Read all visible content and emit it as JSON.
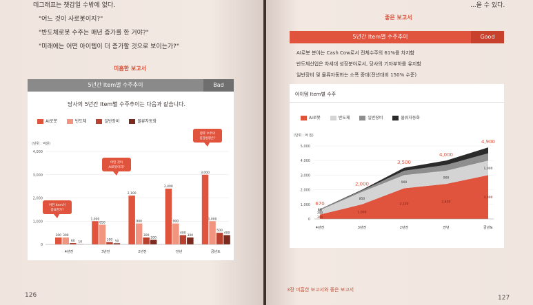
{
  "left_page": {
    "intro_lines": [
      "데그래프는 챗갑일 수밖에 없다.",
      "\"어느 것이 사로봇이지?\"",
      "\"반도체로봇 수주는 매년 증가를 한 거야?\"",
      "\"미래에는 어떤 아이템이 더 증가할 것으로 보이는가?\""
    ],
    "section_title": "미흡한 보고서",
    "header": "5년간 Item별 수주추이",
    "badge": "Bad",
    "chart_title": "당사의 5년간 Item별 수주추이는 다음과 같습니다.",
    "page_number": "126"
  },
  "right_page": {
    "top_text": "...을 수 있다.",
    "section_title": "좋은 보고서",
    "header": "5년간 Item별 수주추이",
    "badge": "Good",
    "bullets": [
      "AI로봇 분야는 Cash Cow로서 전체수주의 61%를 차지함",
      "반도체산업은 차세대 성장분야로서, 당사의 기자부하를 유지함",
      "일반장비 및 물류자동화는 소폭 증대(전년대비 150% 수준)"
    ],
    "chart_title": "아이템 Item별 수주",
    "footer": "3장 미흡한 보고서와 좋은 보고서",
    "page_number": "127"
  },
  "colors": {
    "ai_robot": "#e0533d",
    "semiconductor": "#f19480",
    "general_equipment": "#b8412f",
    "logistics": "#7a2a1f",
    "good_ai": "#e0533d",
    "good_semi": "#d4d4d4",
    "good_gen": "#8e8e8e",
    "good_log": "#2a2a2a",
    "accent": "#e0533d",
    "header_gray": "#8a8a8a",
    "bad_badge": "#6f6f6f",
    "good_badge": "#e0533d"
  },
  "chart_data": [
    {
      "type": "bar",
      "unit_label": "(단위 : 억원)",
      "categories": [
        "4년전",
        "3년전",
        "2년전",
        "전년",
        "금년도"
      ],
      "yticks": [
        "0",
        "1,000",
        "2,000",
        "3,000",
        "4,000"
      ],
      "ylim": [
        0,
        4000
      ],
      "series": [
        {
          "name": "AI로봇",
          "values": [
            300,
            1000,
            2100,
            2400,
            3000
          ]
        },
        {
          "name": "반도체",
          "values": [
            300,
            850,
            900,
            900,
            1000
          ]
        },
        {
          "name": "일반장비",
          "values": [
            60,
            100,
            300,
            400,
            500
          ]
        },
        {
          "name": "물류자동화",
          "values": [
            10,
            50,
            200,
            300,
            400
          ]
        }
      ],
      "value_labels": [
        [
          "300",
          "300",
          "60",
          "10"
        ],
        [
          "1,000",
          "850",
          "100",
          "50"
        ],
        [
          "2,100",
          "900",
          "300",
          "200"
        ],
        [
          "2,400",
          "900",
          "400",
          "300"
        ],
        [
          "3,000",
          "1,000",
          "500",
          "400"
        ]
      ],
      "callouts": [
        "어떤 Item이\n중요한가?",
        "어떤 것이\nAI로봇이지?",
        "향후 수주의\n증감방향은?"
      ]
    },
    {
      "type": "area",
      "unit_label": "(단위 : 억 원)",
      "categories": [
        "4년전",
        "3년전",
        "2년전",
        "전년",
        "금년도"
      ],
      "yticks": [
        "0",
        "1,000",
        "2,000",
        "3,000",
        "4,000",
        "5,000"
      ],
      "ylim": [
        0,
        5000
      ],
      "totals": [
        "670",
        "2,000",
        "3,500",
        "4,000",
        "4,900"
      ],
      "series": [
        {
          "name": "AI로봇",
          "values": [
            300,
            1000,
            2100,
            2400,
            3000
          ]
        },
        {
          "name": "반도체",
          "values": [
            300,
            850,
            900,
            900,
            1000
          ]
        },
        {
          "name": "일반장비",
          "values": [
            60,
            100,
            300,
            400,
            500
          ]
        },
        {
          "name": "물류자동화",
          "values": [
            10,
            50,
            200,
            300,
            400
          ]
        }
      ],
      "inner_labels": [
        [
          "300",
          "300",
          "60",
          "10"
        ],
        [
          "1,000",
          "850",
          "",
          ""
        ],
        [
          "2,100",
          "900",
          "",
          ""
        ],
        [
          "2,400",
          "900",
          "",
          ""
        ],
        [
          "3,000",
          "1,000",
          "",
          ""
        ]
      ]
    }
  ]
}
